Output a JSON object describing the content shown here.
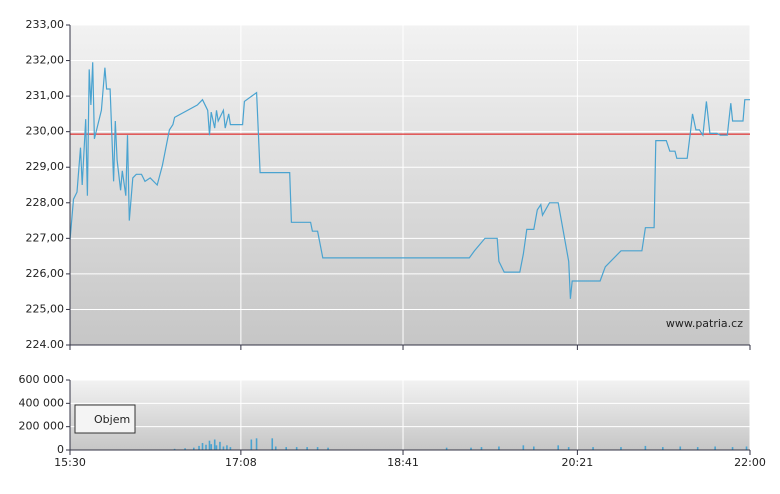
{
  "chart_data": [
    {
      "type": "line",
      "color": "#4aa3d0",
      "xlim": [
        "15:30",
        "22:00"
      ],
      "ylim": [
        224,
        233
      ],
      "yticks": [
        {
          "value": 224,
          "label": "224.00"
        },
        {
          "value": 225,
          "label": "225,00"
        },
        {
          "value": 226,
          "label": "226,00"
        },
        {
          "value": 227,
          "label": "227,00"
        },
        {
          "value": 228,
          "label": "228,00"
        },
        {
          "value": 229,
          "label": "229,00"
        },
        {
          "value": 230,
          "label": "230,00"
        },
        {
          "value": 231,
          "label": "231,00"
        },
        {
          "value": 232,
          "label": "232,00"
        },
        {
          "value": 233,
          "label": "233,00"
        }
      ],
      "reference_line": {
        "value": 229.93,
        "color": "#e03030"
      },
      "annotation": "www.patria.cz",
      "grid": true,
      "x": [
        "15:30",
        "15:32",
        "15:34",
        "15:36",
        "15:37",
        "15:39",
        "15:40",
        "15:41",
        "15:42",
        "15:43",
        "15:44",
        "15:48",
        "15:50",
        "15:51",
        "15:53",
        "15:55",
        "15:56",
        "15:57",
        "15:59",
        "16:00",
        "16:02",
        "16:03",
        "16:04",
        "16:06",
        "16:08",
        "16:11",
        "16:13",
        "16:16",
        "16:20",
        "16:23",
        "16:27",
        "16:29",
        "16:30",
        "16:43",
        "16:46",
        "16:49",
        "16:50",
        "16:51",
        "16:53",
        "16:54",
        "16:55",
        "16:58",
        "16:59",
        "17:01",
        "17:02",
        "17:09",
        "17:10",
        "17:17",
        "17:19",
        "17:36",
        "17:37",
        "17:48",
        "17:49",
        "17:52",
        "17:55",
        "19:19",
        "19:22",
        "19:28",
        "19:35",
        "19:36",
        "19:39",
        "19:48",
        "19:50",
        "19:52",
        "19:56",
        "19:58",
        "20:00",
        "20:01",
        "20:05",
        "20:10",
        "20:16",
        "20:17",
        "20:18",
        "20:34",
        "20:37",
        "20:46",
        "20:58",
        "21:00",
        "21:05",
        "21:06",
        "21:12",
        "21:14",
        "21:17",
        "21:18",
        "21:24",
        "21:26",
        "21:27",
        "21:29",
        "21:31",
        "21:33",
        "21:35",
        "21:37",
        "21:41",
        "21:43",
        "21:47",
        "21:49",
        "21:50",
        "21:56",
        "21:57",
        "22:00"
      ],
      "values": [
        226.95,
        228.1,
        228.3,
        229.55,
        228.5,
        230.35,
        228.2,
        231.75,
        230.75,
        231.95,
        229.8,
        230.6,
        231.8,
        231.2,
        231.2,
        228.6,
        230.3,
        229.2,
        228.35,
        228.9,
        228.2,
        229.9,
        227.5,
        228.7,
        228.8,
        228.8,
        228.6,
        228.7,
        228.5,
        229.05,
        230.05,
        230.2,
        230.4,
        230.75,
        230.9,
        230.6,
        229.9,
        230.55,
        230.1,
        230.6,
        230.3,
        230.6,
        230.1,
        230.5,
        230.2,
        230.2,
        230.85,
        231.1,
        228.85,
        228.85,
        227.45,
        227.45,
        227.2,
        227.2,
        226.45,
        226.45,
        226.65,
        227.0,
        227.0,
        226.35,
        226.05,
        226.05,
        226.55,
        227.25,
        227.25,
        227.8,
        227.95,
        227.65,
        228.0,
        228.0,
        226.35,
        225.3,
        225.8,
        225.8,
        226.2,
        226.65,
        226.65,
        227.3,
        227.3,
        229.75,
        229.75,
        229.45,
        229.45,
        229.25,
        229.25,
        230.05,
        230.5,
        230.05,
        230.05,
        229.9,
        230.85,
        229.95,
        229.95,
        229.9,
        229.9,
        230.8,
        230.3,
        230.3,
        230.9,
        230.9
      ]
    },
    {
      "type": "bar",
      "color": "#4aa3d0",
      "xlim": [
        "15:30",
        "22:00"
      ],
      "xticks": [
        "15:30",
        "17:08",
        "18:41",
        "20:21",
        "22:00"
      ],
      "ylim": [
        0,
        600000
      ],
      "yticks": [
        0,
        {
          "value": 200000,
          "label": "200 000"
        },
        {
          "value": 400000,
          "label": "400 000"
        },
        {
          "value": 600000,
          "label": "600 000"
        }
      ],
      "legend": "Objem",
      "grid": true,
      "x": [
        "16:30",
        "16:36",
        "16:41",
        "16:44",
        "16:46",
        "16:48",
        "16:50",
        "16:51",
        "16:53",
        "16:54",
        "16:56",
        "16:58",
        "17:00",
        "17:02",
        "17:14",
        "17:17",
        "17:26",
        "17:28",
        "17:34",
        "17:40",
        "17:46",
        "17:52",
        "17:58",
        "19:06",
        "19:20",
        "19:26",
        "19:36",
        "19:50",
        "19:56",
        "20:10",
        "20:16",
        "20:30",
        "20:46",
        "21:00",
        "21:10",
        "21:20",
        "21:30",
        "21:40",
        "21:50",
        "21:58"
      ],
      "values": [
        10000,
        15000,
        20000,
        35000,
        60000,
        45000,
        80000,
        50000,
        90000,
        40000,
        70000,
        30000,
        40000,
        25000,
        90000,
        100000,
        100000,
        30000,
        25000,
        25000,
        25000,
        25000,
        20000,
        20000,
        20000,
        25000,
        30000,
        40000,
        30000,
        40000,
        25000,
        25000,
        25000,
        35000,
        25000,
        30000,
        25000,
        30000,
        25000,
        30000
      ]
    }
  ]
}
